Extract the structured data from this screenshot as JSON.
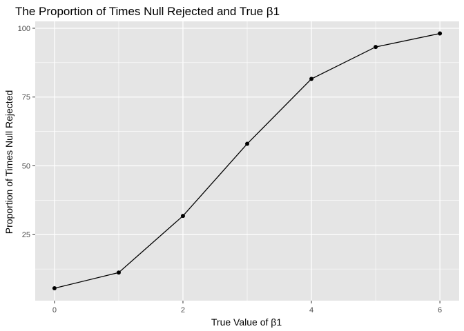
{
  "chart_data": {
    "type": "line",
    "title": "The Proportion of Times Null Rejected and True β1",
    "xlabel": "True Value of β1",
    "ylabel": "Proportion of Times Null Rejected",
    "x": [
      0,
      1,
      2,
      3,
      4,
      5,
      6
    ],
    "series": [
      {
        "values": [
          5.5,
          11.2,
          31.8,
          58.0,
          81.6,
          93.2,
          98.1
        ]
      }
    ],
    "xlim": [
      -0.3,
      6.3
    ],
    "ylim": [
      1.0,
      102.5
    ],
    "x_ticks": [
      0,
      2,
      4,
      6
    ],
    "x_minor_ticks": [
      1,
      3,
      5
    ],
    "y_ticks": [
      25,
      50,
      75,
      100
    ],
    "y_minor_ticks": [
      12.5,
      37.5,
      62.5,
      87.5
    ],
    "x_tick_labels": [
      "0",
      "2",
      "4",
      "6"
    ],
    "y_tick_labels": [
      "25",
      "50",
      "75",
      "100"
    ],
    "grid": true,
    "legend": "none",
    "colors": {
      "panel": "#e5e5e5",
      "grid": "#ffffff",
      "line": "#000000",
      "point": "#000000"
    }
  }
}
